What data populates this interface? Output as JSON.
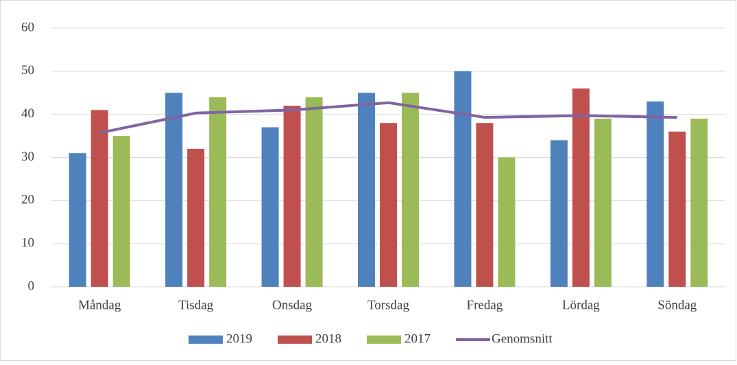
{
  "chart_data": {
    "type": "bar",
    "categories": [
      "Måndag",
      "Tisdag",
      "Onsdag",
      "Torsdag",
      "Fredag",
      "Lördag",
      "Söndag"
    ],
    "series": [
      {
        "name": "2019",
        "color": "#4f81bd",
        "values": [
          31,
          45,
          37,
          45,
          50,
          34,
          43
        ]
      },
      {
        "name": "2018",
        "color": "#c0504d",
        "values": [
          41,
          32,
          42,
          38,
          38,
          46,
          36
        ]
      },
      {
        "name": "2017",
        "color": "#9bbb59",
        "values": [
          35,
          44,
          44,
          45,
          30,
          39,
          39
        ]
      },
      {
        "name": "Genomsnitt",
        "color": "#8064a2",
        "type": "line",
        "values": [
          35.7,
          40.3,
          41,
          42.7,
          39.3,
          39.7,
          39.3
        ]
      }
    ],
    "ylim": [
      0,
      60
    ],
    "yticks": [
      0,
      10,
      20,
      30,
      40,
      50,
      60
    ],
    "grid": true,
    "legend": "bottom"
  }
}
